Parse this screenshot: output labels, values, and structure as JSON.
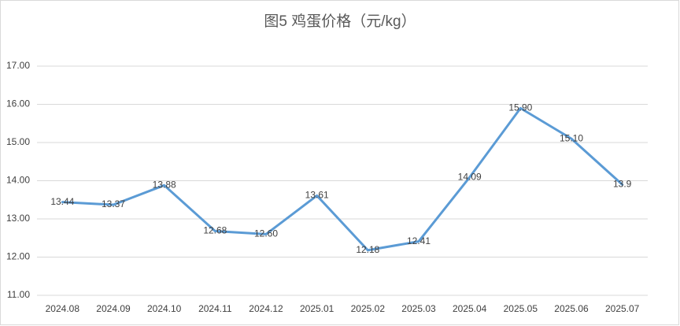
{
  "chart_data": {
    "type": "line",
    "title": "图5  鸡蛋价格（元/kg）",
    "categories": [
      "2024.08",
      "2024.09",
      "2024.10",
      "2024.11",
      "2024.12",
      "2025.01",
      "2025.02",
      "2025.03",
      "2025.04",
      "2025.05",
      "2025.06",
      "2025.07"
    ],
    "values": [
      13.44,
      13.37,
      13.88,
      12.68,
      12.6,
      13.61,
      12.18,
      12.41,
      14.09,
      15.9,
      15.1,
      13.9
    ],
    "value_labels": [
      "13.44",
      "13.37",
      "13.88",
      "12.68",
      "12.60",
      "13.61",
      "12.18",
      "12.41",
      "14.09",
      "15.90",
      "15.10",
      "13.9"
    ],
    "color": "#5b9bd5",
    "ylim": [
      11,
      17
    ],
    "yticks": [
      {
        "value": 11,
        "label": "11.00"
      },
      {
        "value": 12,
        "label": "12.00"
      },
      {
        "value": 13,
        "label": "13.00"
      },
      {
        "value": 14,
        "label": "14.00"
      },
      {
        "value": 15,
        "label": "15.00"
      },
      {
        "value": 16,
        "label": "16.00"
      },
      {
        "value": 17,
        "label": "17.00"
      }
    ],
    "grid": true
  }
}
